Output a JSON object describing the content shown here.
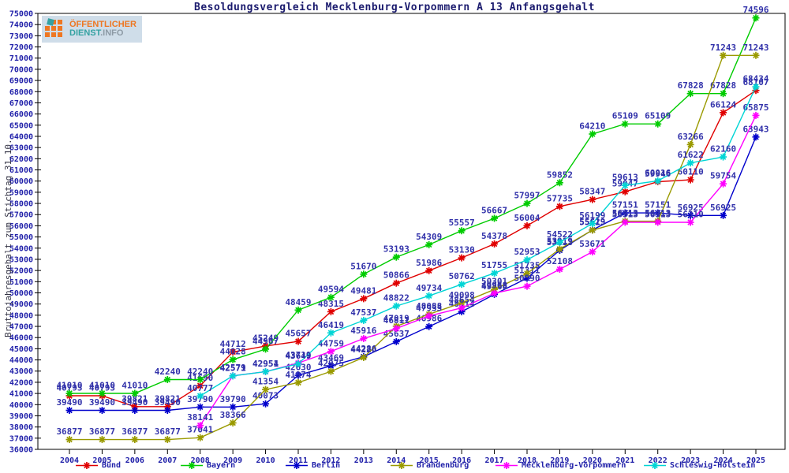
{
  "title": "Besoldungsvergleich Mecklenburg-Vorpommern A 13 Anfangsgehalt",
  "y_axis_label": "Bruttojahresgehalt zum Stichtag 31.10.",
  "logo": {
    "line1": "ÖFFENTLICHER",
    "line2_a": "DIENST",
    "line2_b": ".INFO"
  },
  "chart_data": {
    "type": "line",
    "x": [
      2004,
      2005,
      2006,
      2007,
      2008,
      2009,
      2010,
      2011,
      2012,
      2013,
      2014,
      2015,
      2016,
      2017,
      2018,
      2019,
      2020,
      2021,
      2022,
      2023,
      2024,
      2025
    ],
    "ylim": [
      36000,
      75000
    ],
    "ytick_step": 1000,
    "grid": false,
    "legend_position": "bottom",
    "point_labels": true,
    "axis_color": "#000000",
    "label_color": "#3232aa",
    "series": [
      {
        "name": "Bund",
        "color": "#e00000",
        "values": [
          40793,
          40793,
          39821,
          39821,
          41690,
          44712,
          45249,
          45657,
          48315,
          49481,
          50866,
          51986,
          53130,
          54378,
          56004,
          57735,
          58347,
          59047,
          59946,
          60110,
          66124,
          68107
        ]
      },
      {
        "name": "Bayern",
        "color": "#00cc00",
        "values": [
          41010,
          41010,
          41010,
          42240,
          42240,
          44028,
          44967,
          48459,
          49594,
          51670,
          53193,
          54309,
          55557,
          56667,
          57997,
          59852,
          64210,
          65109,
          65109,
          67828,
          67828,
          74596
        ]
      },
      {
        "name": "Berlin",
        "color": "#0000cc",
        "values": [
          39490,
          39490,
          39490,
          39490,
          39790,
          39790,
          40073,
          42630,
          43469,
          44286,
          45637,
          46986,
          48314,
          49868,
          51311,
          53813,
          55629,
          57151,
          57151,
          56925,
          56925,
          63943
        ]
      },
      {
        "name": "Brandenburg",
        "color": "#9a9a00",
        "values": [
          36877,
          36877,
          36877,
          36877,
          37041,
          38366,
          41354,
          41974,
          42975,
          44220,
          47019,
          48088,
          49098,
          50301,
          51735,
          53919,
          55613,
          56413,
          56413,
          63266,
          71243,
          71243
        ]
      },
      {
        "name": "Mecklenburg-Vorpommern",
        "color": "#ff00ff",
        "values": [
          null,
          null,
          null,
          null,
          38141,
          42579,
          42954,
          43719,
          44759,
          45916,
          46811,
          47933,
          48654,
          49968,
          50590,
          52108,
          53671,
          56313,
          56313,
          56310,
          59754,
          65875
        ]
      },
      {
        "name": "Schleswig-Holstein",
        "color": "#00d5d5",
        "values": [
          null,
          null,
          null,
          null,
          40777,
          42571,
          42951,
          43649,
          46419,
          47537,
          48822,
          49734,
          50762,
          51755,
          52953,
          54522,
          56199,
          59613,
          60016,
          61622,
          62160,
          68434
        ]
      }
    ]
  }
}
